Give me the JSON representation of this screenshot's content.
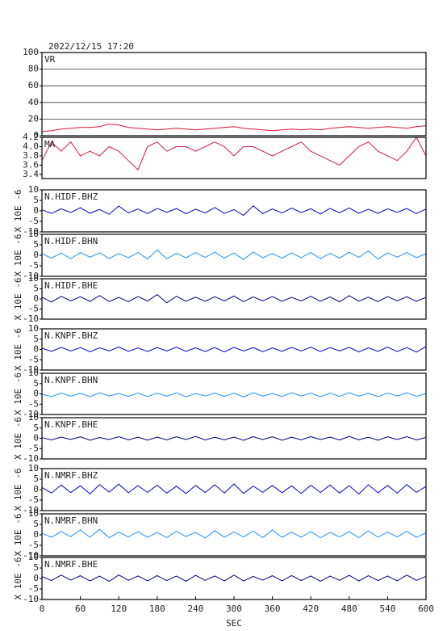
{
  "chart_data": {
    "type": "line",
    "title": "2022/12/15  17:20",
    "xlabel": "SEC",
    "y_unit": "X 10E -6",
    "xlim": [
      0,
      600
    ],
    "xticks": [
      0,
      60,
      120,
      180,
      240,
      300,
      360,
      420,
      480,
      540,
      600
    ],
    "x": [
      0,
      15,
      30,
      45,
      60,
      75,
      90,
      105,
      120,
      135,
      150,
      165,
      180,
      195,
      210,
      225,
      240,
      255,
      270,
      285,
      300,
      315,
      330,
      345,
      360,
      375,
      390,
      405,
      420,
      435,
      450,
      465,
      480,
      495,
      510,
      525,
      540,
      555,
      570,
      585,
      600
    ],
    "panels": [
      {
        "name": "VR",
        "color": "#dc143c",
        "grid": true,
        "ylim": [
          0,
          100
        ],
        "yticks": [
          0,
          20,
          40,
          60,
          80,
          100
        ],
        "values": [
          5,
          6,
          8,
          9,
          10,
          10,
          11,
          14,
          13,
          10,
          9,
          8,
          7,
          8,
          9,
          8,
          7,
          8,
          9,
          10,
          11,
          9,
          8,
          7,
          6,
          7,
          8,
          7,
          8,
          7,
          9,
          10,
          11,
          10,
          9,
          10,
          11,
          10,
          9,
          11,
          12
        ]
      },
      {
        "name": "MA",
        "color": "#dc143c",
        "grid": false,
        "ylim": [
          3.31,
          4.2
        ],
        "yticks": [
          3.4,
          3.6,
          3.8,
          {
            "value": 4.0,
            "label": "4.0"
          },
          4.2
        ],
        "values": [
          3.7,
          4.1,
          3.9,
          4.1,
          3.8,
          3.9,
          3.8,
          4.0,
          3.9,
          3.7,
          3.5,
          4.0,
          4.1,
          3.9,
          4.0,
          4.0,
          3.9,
          4.0,
          4.1,
          4.0,
          3.8,
          4.0,
          4.0,
          3.9,
          3.8,
          3.9,
          4.0,
          4.1,
          3.9,
          3.8,
          3.7,
          3.6,
          3.8,
          4.0,
          4.1,
          3.9,
          3.8,
          3.7,
          3.9,
          4.2,
          3.8
        ]
      },
      {
        "name": "N.HIDF.BHZ",
        "color": "#0000cd",
        "ylim": [
          -10,
          10
        ],
        "yticks": [
          -10,
          -5,
          0,
          5,
          10
        ],
        "values": [
          0.5,
          -1.2,
          1.0,
          -0.8,
          1.5,
          -1.1,
          0.7,
          -1.6,
          2.3,
          -1.0,
          0.9,
          -1.3,
          1.2,
          -0.7,
          1.1,
          -1.4,
          0.8,
          -1.0,
          1.6,
          -1.2,
          0.6,
          -2.1,
          2.4,
          -1.3,
          0.9,
          -1.0,
          1.3,
          -0.8,
          1.0,
          -1.5,
          1.2,
          -0.9,
          1.4,
          -1.1,
          0.8,
          -1.2,
          1.0,
          -0.7,
          1.1,
          -1.3,
          0.9
        ]
      },
      {
        "name": "N.HIDF.BHN",
        "color": "#1e90ff",
        "ylim": [
          -10,
          10
        ],
        "yticks": [
          -10,
          -5,
          0,
          5,
          10
        ],
        "values": [
          0.8,
          -1.4,
          1.1,
          -1.6,
          1.3,
          -0.9,
          1.2,
          -1.5,
          0.9,
          -1.1,
          1.4,
          -1.8,
          2.6,
          -1.7,
          1.0,
          -1.2,
          1.3,
          -1.0,
          1.5,
          -1.3,
          1.1,
          -2.0,
          1.6,
          -1.2,
          0.9,
          -1.4,
          1.2,
          -1.1,
          1.4,
          -1.6,
          1.0,
          -1.3,
          1.5,
          -1.0,
          2.1,
          -1.8,
          1.2,
          -0.9,
          1.3,
          -1.1,
          0.7
        ]
      },
      {
        "name": "N.HIDF.BHE",
        "color": "#000080",
        "ylim": [
          -10,
          10
        ],
        "yticks": [
          -10,
          -5,
          0,
          5,
          10
        ],
        "values": [
          0.9,
          -1.5,
          1.3,
          -1.0,
          1.1,
          -1.2,
          1.7,
          -1.3,
          0.8,
          -1.4,
          1.2,
          -1.0,
          2.2,
          -1.9,
          1.3,
          -1.1,
          0.9,
          -1.2,
          1.1,
          -1.0,
          1.4,
          -1.3,
          1.0,
          -0.9,
          1.2,
          -1.1,
          0.8,
          -1.0,
          1.3,
          -1.2,
          1.0,
          -1.4,
          1.6,
          -1.1,
          0.9,
          -1.3,
          1.2,
          -1.0,
          1.1,
          -1.2,
          0.8
        ]
      },
      {
        "name": "N.KNPF.BHZ",
        "color": "#0000cd",
        "ylim": [
          -10,
          10
        ],
        "yticks": [
          -10,
          -5,
          0,
          5,
          10
        ],
        "values": [
          0.6,
          -0.9,
          1.0,
          -0.8,
          0.9,
          -1.1,
          0.8,
          -0.7,
          1.2,
          -0.9,
          0.7,
          -1.0,
          0.9,
          -0.8,
          1.1,
          -0.9,
          0.8,
          -1.0,
          0.9,
          -1.2,
          1.0,
          -0.8,
          0.9,
          -1.1,
          0.7,
          -0.9,
          1.0,
          -0.8,
          1.1,
          -1.0,
          0.9,
          -0.7,
          1.0,
          -1.2,
          0.8,
          -0.9,
          1.1,
          -1.0,
          0.9,
          -1.3,
          1.4
        ]
      },
      {
        "name": "N.KNPF.BHN",
        "color": "#1e90ff",
        "ylim": [
          -10,
          10
        ],
        "yticks": [
          -10,
          -5,
          0,
          5,
          10
        ],
        "values": [
          -0.2,
          -1.3,
          0.4,
          -1.1,
          0.3,
          -1.4,
          0.5,
          -1.0,
          0.2,
          -1.2,
          0.4,
          -1.3,
          0.3,
          -1.1,
          0.5,
          -1.4,
          0.2,
          -1.0,
          0.4,
          -1.2,
          0.3,
          -1.5,
          0.6,
          -1.1,
          0.2,
          -1.3,
          0.5,
          -1.0,
          0.3,
          -1.4,
          0.4,
          -1.2,
          0.5,
          -1.1,
          0.3,
          -1.3,
          0.4,
          -1.0,
          0.6,
          -1.2,
          0.2
        ]
      },
      {
        "name": "N.KNPF.BHE",
        "color": "#000080",
        "ylim": [
          -10,
          10
        ],
        "yticks": [
          -10,
          -5,
          0,
          5,
          10
        ],
        "values": [
          0.3,
          -0.8,
          0.6,
          -0.5,
          0.7,
          -0.9,
          0.4,
          -0.6,
          0.8,
          -0.7,
          0.5,
          -0.9,
          0.6,
          -0.8,
          0.7,
          -0.6,
          0.9,
          -0.8,
          0.5,
          -0.7,
          0.6,
          -1.0,
          0.8,
          -0.6,
          0.7,
          -0.9,
          0.5,
          -0.7,
          0.8,
          -0.6,
          0.6,
          -0.8,
          0.9,
          -0.7,
          0.5,
          -0.9,
          0.7,
          -0.6,
          0.8,
          -0.8,
          0.4
        ]
      },
      {
        "name": "N.NMRF.BHZ",
        "color": "#0000cd",
        "ylim": [
          -10,
          10
        ],
        "yticks": [
          -10,
          -5,
          0,
          5,
          10
        ],
        "values": [
          1.0,
          -1.6,
          2.2,
          -1.4,
          1.8,
          -2.0,
          2.4,
          -1.2,
          2.6,
          -1.5,
          1.9,
          -1.3,
          2.1,
          -1.7,
          1.6,
          -1.9,
          2.0,
          -1.4,
          2.3,
          -1.6,
          2.7,
          -1.8,
          1.7,
          -1.3,
          2.0,
          -1.5,
          1.8,
          -1.9,
          2.1,
          -1.4,
          2.2,
          -1.6,
          1.9,
          -2.1,
          2.3,
          -1.5,
          2.0,
          -1.7,
          2.4,
          -1.3,
          1.5
        ]
      },
      {
        "name": "N.NMRF.BHN",
        "color": "#1e90ff",
        "ylim": [
          -10,
          10
        ],
        "yticks": [
          -10,
          -5,
          0,
          5,
          10
        ],
        "values": [
          0.8,
          -1.2,
          1.6,
          -0.9,
          2.3,
          -1.1,
          2.6,
          -1.4,
          1.3,
          -1.0,
          1.5,
          -1.2,
          1.1,
          -1.3,
          1.7,
          -0.8,
          1.2,
          -1.5,
          2.0,
          -1.1,
          1.4,
          -1.0,
          1.8,
          -1.3,
          2.4,
          -1.2,
          1.3,
          -1.1,
          1.6,
          -1.4,
          1.2,
          -1.0,
          1.5,
          -1.3,
          1.9,
          -1.1,
          1.3,
          -1.0,
          1.7,
          -1.2,
          1.0
        ]
      },
      {
        "name": "N.NMRF.BHE",
        "color": "#000080",
        "ylim": [
          -10,
          10
        ],
        "yticks": [
          -10,
          -5,
          0,
          5,
          10
        ],
        "values": [
          0.9,
          -1.0,
          1.6,
          -0.8,
          1.3,
          -1.2,
          1.1,
          -1.4,
          1.7,
          -0.9,
          1.2,
          -1.1,
          1.4,
          -1.0,
          1.1,
          -1.3,
          1.5,
          -0.9,
          1.2,
          -1.1,
          1.6,
          -1.2,
          1.0,
          -0.8,
          1.3,
          -1.1,
          1.4,
          -1.0,
          1.2,
          -1.3,
          1.1,
          -0.9,
          1.5,
          -1.2,
          1.3,
          -1.0,
          1.2,
          -1.1,
          1.6,
          -0.9,
          1.0
        ]
      }
    ]
  }
}
